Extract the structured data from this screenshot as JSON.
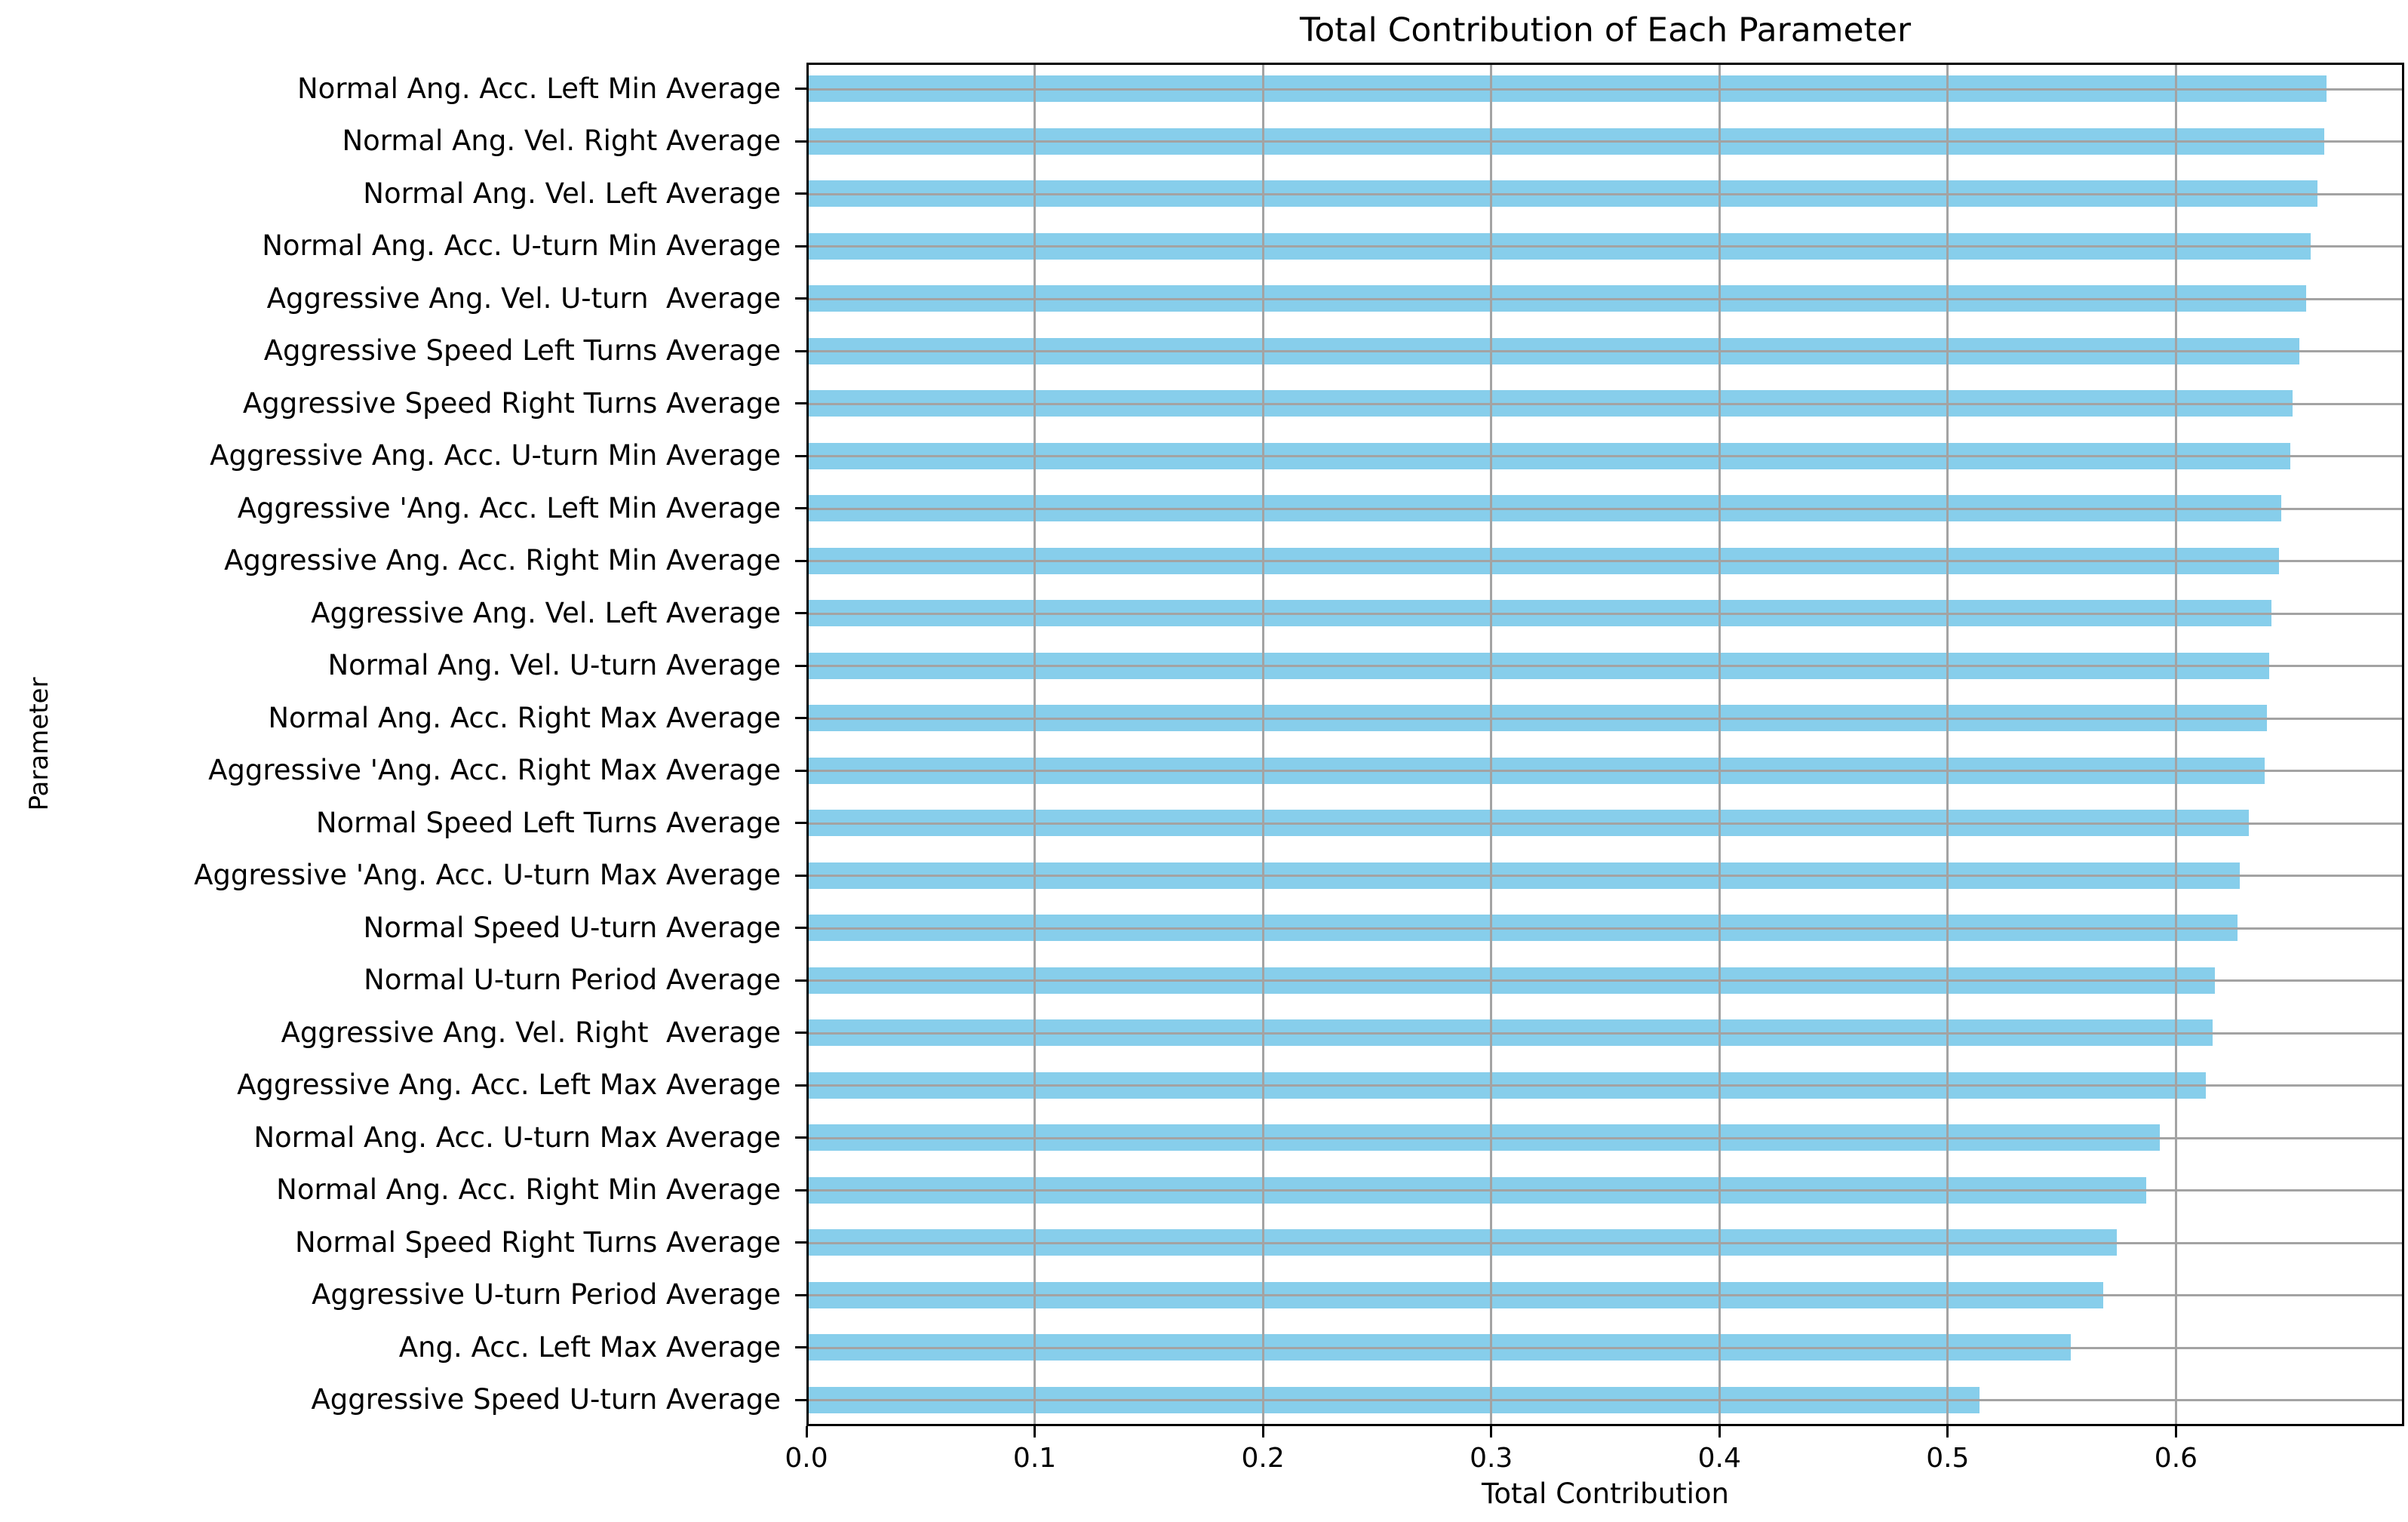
{
  "chart_data": {
    "type": "bar",
    "orientation": "horizontal",
    "title": "Total Contribution of Each Parameter",
    "xlabel": "Total Contribution",
    "ylabel": "Parameter",
    "xlim": [
      0,
      0.7
    ],
    "xticks": [
      0.0,
      0.1,
      0.2,
      0.3,
      0.4,
      0.5,
      0.6
    ],
    "xtick_labels": [
      "0.0",
      "0.1",
      "0.2",
      "0.3",
      "0.4",
      "0.5",
      "0.6"
    ],
    "grid": true,
    "legend": false,
    "bar_color": "#87CEEB",
    "grid_color": "#a3a3a3",
    "spine_color": "#000000",
    "background_color": "#ffffff",
    "categories": [
      "Normal Ang. Acc. Left Min Average",
      "Normal Ang. Vel. Right Average",
      "Normal Ang. Vel. Left Average",
      "Normal Ang. Acc. U-turn Min Average",
      "Aggressive Ang. Vel. U-turn  Average",
      "Aggressive Speed Left Turns Average",
      "Aggressive Speed Right Turns Average",
      "Aggressive Ang. Acc. U-turn Min Average",
      "Aggressive 'Ang. Acc. Left Min Average",
      "Aggressive Ang. Acc. Right Min Average",
      "Aggressive Ang. Vel. Left Average",
      "Normal Ang. Vel. U-turn Average",
      "Normal Ang. Acc. Right Max Average",
      "Aggressive 'Ang. Acc. Right Max Average",
      "Normal Speed Left Turns Average",
      "Aggressive 'Ang. Acc. U-turn Max Average",
      "Normal Speed U-turn Average",
      "Normal U-turn Period Average",
      "Aggressive Ang. Vel. Right  Average",
      "Aggressive Ang. Acc. Left Max Average",
      "Normal Ang. Acc. U-turn Max Average",
      "Normal Ang. Acc. Right Min Average",
      "Normal Speed Right Turns Average",
      "Aggressive U-turn Period Average",
      "Ang. Acc. Left Max Average",
      "Aggressive Speed U-turn Average"
    ],
    "values": [
      0.665,
      0.664,
      0.661,
      0.658,
      0.656,
      0.653,
      0.65,
      0.649,
      0.645,
      0.644,
      0.641,
      0.64,
      0.639,
      0.638,
      0.631,
      0.627,
      0.626,
      0.616,
      0.615,
      0.612,
      0.592,
      0.586,
      0.573,
      0.567,
      0.553,
      0.513
    ]
  }
}
